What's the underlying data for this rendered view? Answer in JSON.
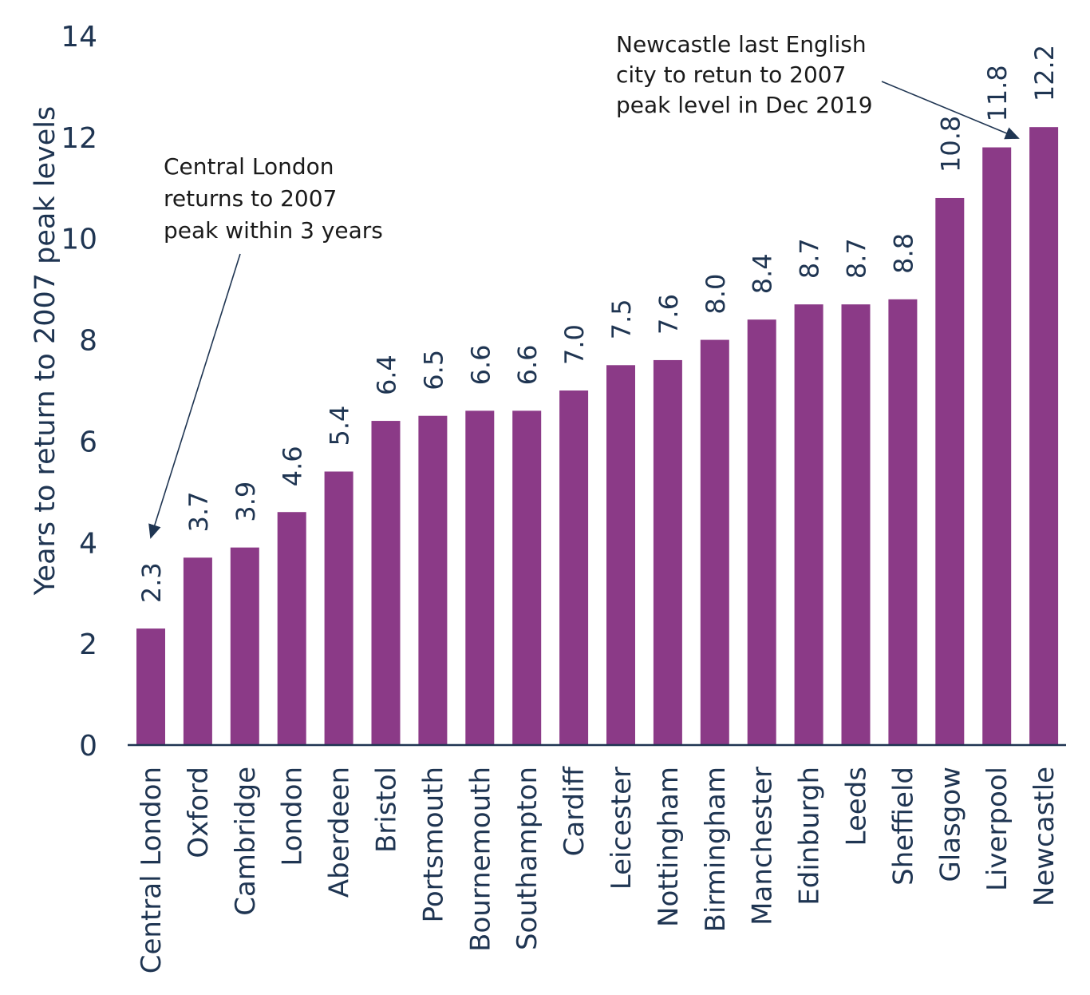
{
  "chart_data": {
    "type": "bar",
    "title": "",
    "xlabel": "",
    "ylabel": "Years to return to 2007 peak levels",
    "ylim": [
      0,
      14
    ],
    "yticks": [
      0,
      2,
      4,
      6,
      8,
      10,
      12,
      14
    ],
    "grid": false,
    "categories": [
      "Central London",
      "Oxford",
      "Cambridge",
      "London",
      "Aberdeen",
      "Bristol",
      "Portsmouth",
      "Bournemouth",
      "Southampton",
      "Cardiff",
      "Leicester",
      "Nottingham",
      "Birmingham",
      "Manchester",
      "Edinburgh",
      "Leeds",
      "Sheffield",
      "Glasgow",
      "Liverpool",
      "Newcastle"
    ],
    "values": [
      2.3,
      3.7,
      3.9,
      4.6,
      5.4,
      6.4,
      6.5,
      6.6,
      6.6,
      7.0,
      7.5,
      7.6,
      8.0,
      8.4,
      8.7,
      8.7,
      8.8,
      10.8,
      11.8,
      12.2
    ],
    "value_labels": [
      "2.3",
      "3.7",
      "3.9",
      "4.6",
      "5.4",
      "6.4",
      "6.5",
      "6.6",
      "6.6",
      "7.0",
      "7.5",
      "7.6",
      "8.0",
      "8.4",
      "8.7",
      "8.7",
      "8.8",
      "10.8",
      "11.8",
      "12.2"
    ],
    "bar_color": "#8b3a87",
    "text_color": "#1f3552",
    "annotations": [
      {
        "lines": [
          "Central London",
          "returns to 2007",
          "peak within 3 years"
        ],
        "points_to": "Central London"
      },
      {
        "lines": [
          "Newcastle last English",
          "city to retun to 2007",
          "peak level in Dec 2019"
        ],
        "points_to": "Newcastle"
      }
    ]
  }
}
